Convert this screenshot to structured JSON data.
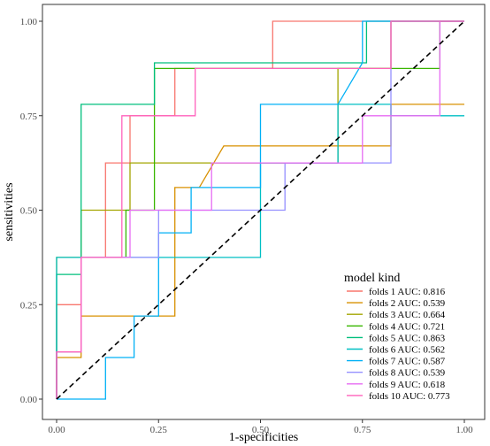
{
  "chart_data": {
    "type": "line",
    "title": "",
    "xlabel": "1-specificities",
    "ylabel": "sensitivities",
    "xlim": [
      0,
      1
    ],
    "ylim": [
      0,
      1
    ],
    "x_ticks": [
      "0.00",
      "0.25",
      "0.50",
      "0.75",
      "1.00"
    ],
    "y_ticks": [
      "0.00",
      "0.25",
      "0.50",
      "0.75",
      "1.00"
    ],
    "grid": false,
    "legend_title": "model kind",
    "legend_position": "bottom-right",
    "reference_line": {
      "x": [
        0,
        1
      ],
      "y": [
        0,
        1
      ],
      "style": "dashed",
      "color": "#000000"
    },
    "series": [
      {
        "name": "folds 1 AUC: 0.816",
        "color": "#F8766D",
        "x": [
          0,
          0,
          0.06,
          0.06,
          0.12,
          0.12,
          0.18,
          0.18,
          0.29,
          0.29,
          0.53,
          0.53,
          0.71,
          0.71,
          1
        ],
        "y": [
          0,
          0.25,
          0.25,
          0.375,
          0.375,
          0.625,
          0.625,
          0.75,
          0.75,
          0.875,
          0.875,
          1,
          1,
          1,
          1
        ]
      },
      {
        "name": "folds 2 AUC: 0.539",
        "color": "#D89000",
        "x": [
          0,
          0,
          0.06,
          0.06,
          0.29,
          0.29,
          0.35,
          0.41,
          0.82,
          0.82,
          1
        ],
        "y": [
          0,
          0.11,
          0.11,
          0.22,
          0.22,
          0.56,
          0.56,
          0.67,
          0.67,
          0.78,
          0.78
        ]
      },
      {
        "name": "folds 3 AUC: 0.664",
        "color": "#A3A500",
        "x": [
          0,
          0,
          0.06,
          0.06,
          0.18,
          0.18,
          0.29,
          0.29,
          0.35,
          0.41,
          0.69,
          0.69,
          0.82,
          0.82,
          1
        ],
        "y": [
          0,
          0.375,
          0.375,
          0.5,
          0.5,
          0.625,
          0.625,
          0.625,
          0.625,
          0.625,
          0.625,
          0.875,
          0.875,
          1,
          1
        ]
      },
      {
        "name": "folds 4 AUC: 0.721",
        "color": "#39B600",
        "x": [
          0,
          0,
          0.06,
          0.06,
          0.17,
          0.17,
          0.24,
          0.24,
          0.76,
          0.76,
          0.88,
          0.88,
          0.94,
          0.94,
          1
        ],
        "y": [
          0,
          0.125,
          0.125,
          0.375,
          0.375,
          0.5,
          0.5,
          0.875,
          0.875,
          0.875,
          0.875,
          0.875,
          0.875,
          1,
          1
        ]
      },
      {
        "name": "folds 5 AUC: 0.863",
        "color": "#00BF7D",
        "x": [
          0,
          0,
          0.06,
          0.06,
          0.24,
          0.24,
          0.76,
          0.76,
          1
        ],
        "y": [
          0,
          0.33,
          0.33,
          0.78,
          0.78,
          0.89,
          0.89,
          1,
          1
        ]
      },
      {
        "name": "folds 6 AUC: 0.562",
        "color": "#00BFC4",
        "x": [
          0,
          0,
          0.06,
          0.06,
          0.12,
          0.12,
          0.25,
          0.25,
          0.5,
          0.5,
          0.69,
          0.69,
          0.82,
          0.82,
          1
        ],
        "y": [
          0,
          0.375,
          0.375,
          0.375,
          0.375,
          0.375,
          0.375,
          0.375,
          0.375,
          0.625,
          0.625,
          0.78,
          0.78,
          0.75,
          0.75
        ]
      },
      {
        "name": "folds 7 AUC: 0.587",
        "color": "#00B0F6",
        "x": [
          0,
          0,
          0.06,
          0.06,
          0.12,
          0.12,
          0.19,
          0.19,
          0.25,
          0.25,
          0.33,
          0.33,
          0.5,
          0.5,
          0.63,
          0.63,
          0.69,
          0.75,
          0.75,
          1
        ],
        "y": [
          0,
          0,
          0,
          0,
          0,
          0.11,
          0.11,
          0.22,
          0.22,
          0.44,
          0.44,
          0.56,
          0.56,
          0.78,
          0.78,
          0.78,
          0.78,
          0.89,
          1,
          1
        ]
      },
      {
        "name": "folds 8 AUC: 0.539",
        "color": "#9590FF",
        "x": [
          0,
          0,
          0.06,
          0.06,
          0.12,
          0.12,
          0.25,
          0.25,
          0.38,
          0.38,
          0.56,
          0.56,
          0.75,
          0.75,
          0.82,
          0.82,
          0.94,
          0.94,
          1
        ],
        "y": [
          0,
          0.125,
          0.125,
          0.375,
          0.375,
          0.375,
          0.375,
          0.5,
          0.5,
          0.5,
          0.5,
          0.625,
          0.625,
          0.625,
          0.625,
          1,
          1,
          1,
          1
        ]
      },
      {
        "name": "folds 9 AUC: 0.618",
        "color": "#E76BF3",
        "x": [
          0,
          0,
          0.06,
          0.06,
          0.18,
          0.18,
          0.38,
          0.38,
          0.5,
          0.5,
          0.75,
          0.75,
          0.82,
          0.82,
          0.94,
          0.94,
          1
        ],
        "y": [
          0,
          0.125,
          0.125,
          0.375,
          0.375,
          0.5,
          0.5,
          0.625,
          0.625,
          0.625,
          0.625,
          0.75,
          0.75,
          0.75,
          0.75,
          1,
          1
        ]
      },
      {
        "name": "folds 10 AUC: 0.773",
        "color": "#FF62BC",
        "x": [
          0,
          0,
          0.06,
          0.06,
          0.16,
          0.16,
          0.34,
          0.34,
          0.82,
          0.82,
          1
        ],
        "y": [
          0,
          0.125,
          0.125,
          0.375,
          0.375,
          0.75,
          0.75,
          0.875,
          0.875,
          1,
          1
        ]
      }
    ]
  }
}
